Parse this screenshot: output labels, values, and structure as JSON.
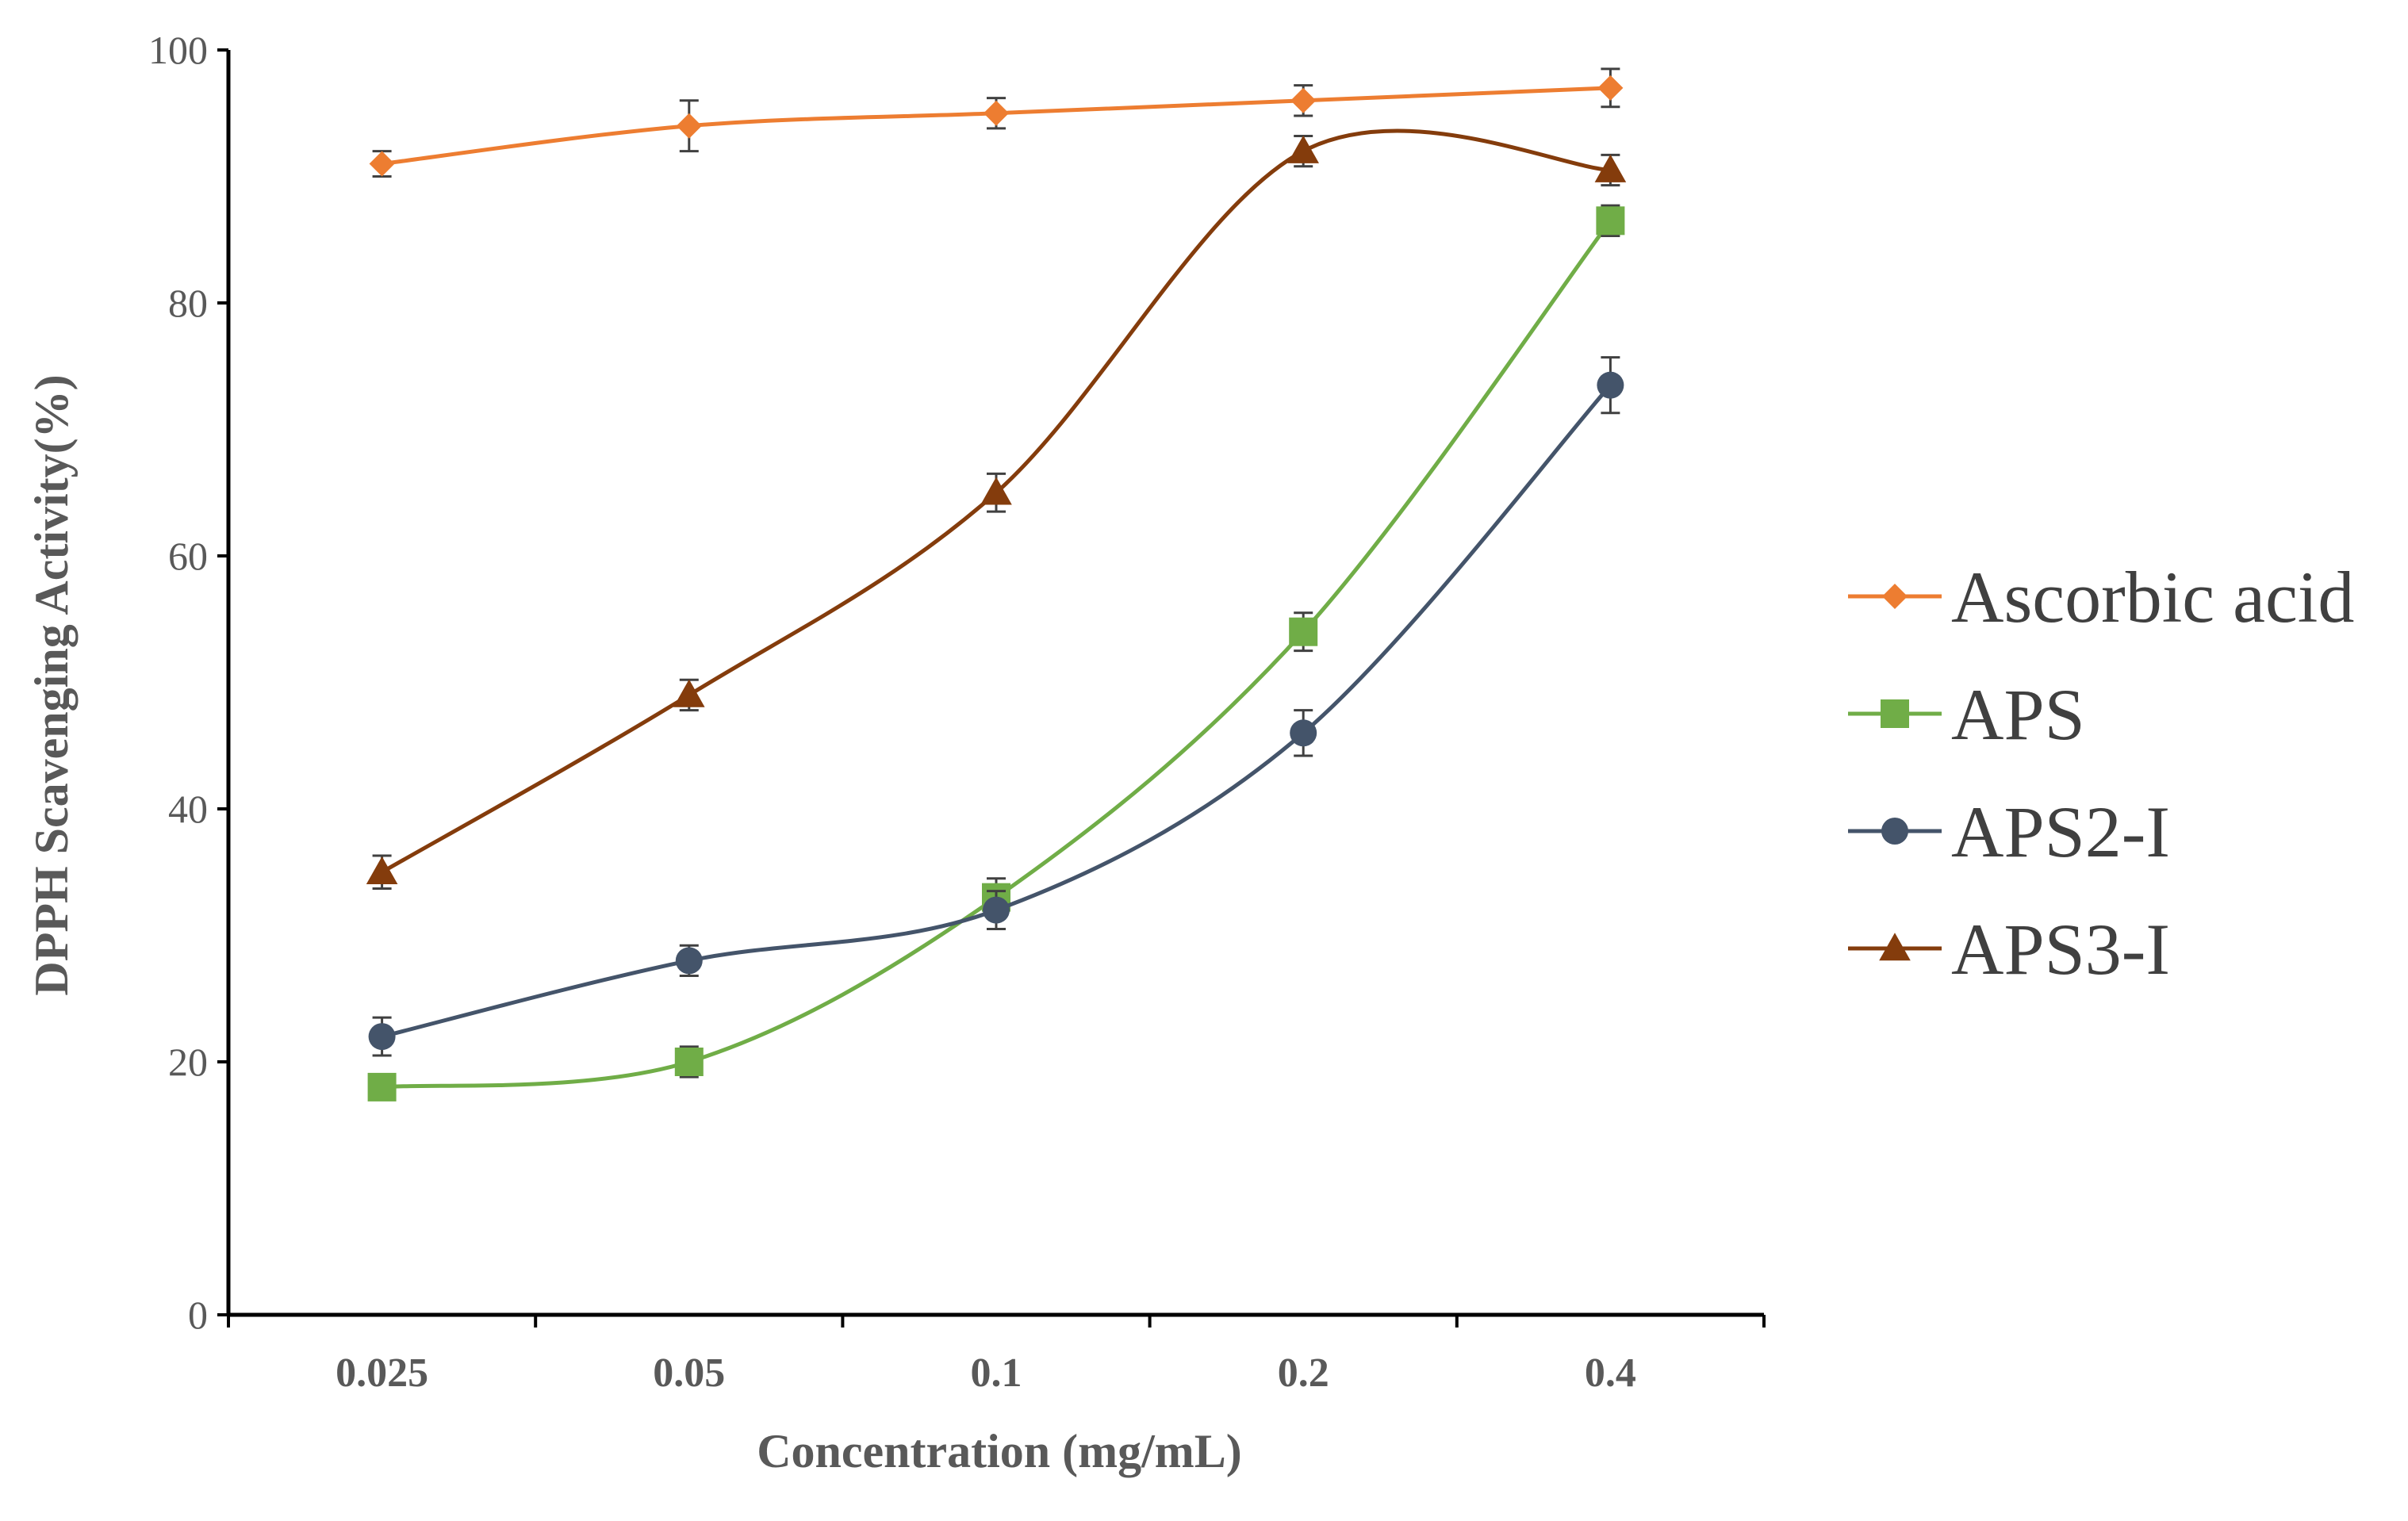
{
  "chart_data": {
    "type": "line",
    "title": "",
    "xlabel": "Concentration (mg/mL)",
    "ylabel": "DPPH Scavenging Activity(%)",
    "categories": [
      "0.025",
      "0.05",
      "0.1",
      "0.2",
      "0.4"
    ],
    "ylim": [
      0,
      100
    ],
    "yticks": [
      "0",
      "20",
      "40",
      "60",
      "80",
      "100"
    ],
    "grid": false,
    "legend_position": "right",
    "series": [
      {
        "name": "Ascorbic acid",
        "color": "#ED7D31",
        "marker": "diamond",
        "values": [
          91,
          94,
          95,
          96,
          97
        ],
        "errors": [
          1,
          2,
          1.2,
          1.2,
          1.5
        ]
      },
      {
        "name": "APS",
        "color": "#70AD47",
        "marker": "square",
        "values": [
          18,
          20,
          33,
          54,
          86.5
        ],
        "errors": [
          1,
          1.2,
          1.5,
          1.5,
          1.2
        ]
      },
      {
        "name": "APS2-I",
        "color": "#44546A",
        "marker": "circle",
        "values": [
          22,
          28,
          32,
          46,
          73.5
        ],
        "errors": [
          1.5,
          1.2,
          1.5,
          1.8,
          2.2
        ]
      },
      {
        "name": "APS3-I",
        "color": "#843C0C",
        "marker": "triangle",
        "values": [
          35,
          49,
          65,
          92,
          90.5
        ],
        "errors": [
          1.3,
          1.2,
          1.5,
          1.2,
          1.2
        ]
      }
    ]
  }
}
